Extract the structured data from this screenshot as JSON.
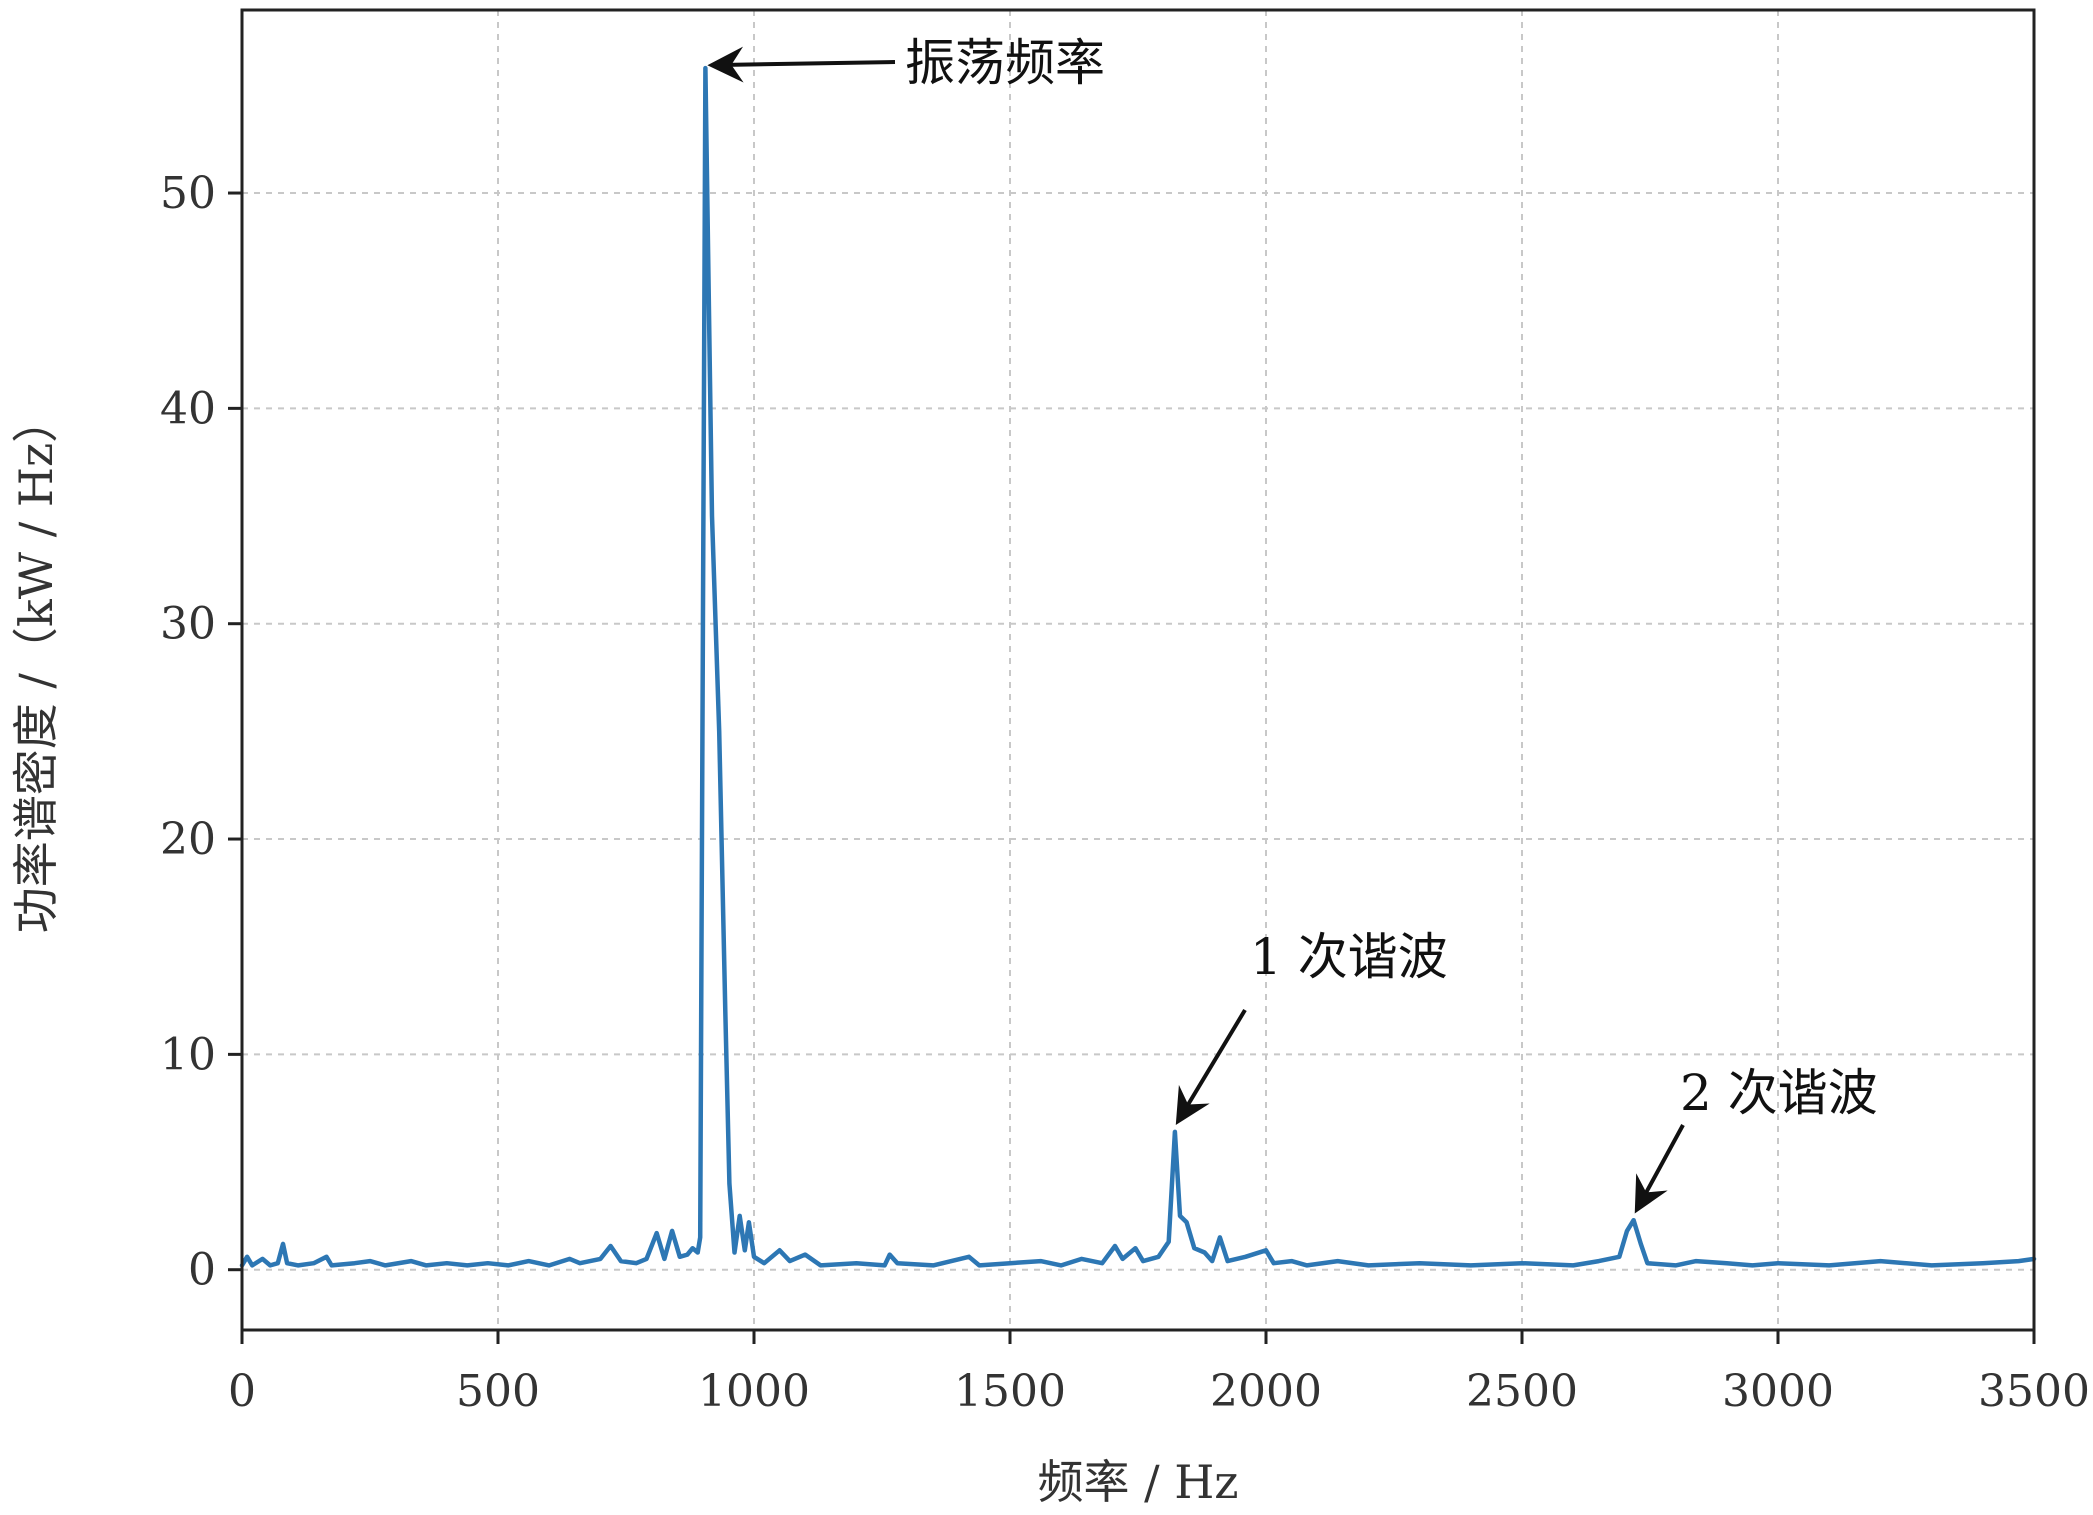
{
  "chart_data": {
    "type": "line",
    "title": "",
    "xlabel": "频率 / Hz",
    "ylabel": "功率谱密度 /（kW / Hz）",
    "xlim": [
      0,
      3500
    ],
    "ylim": [
      -2.8,
      58.5
    ],
    "xticks": [
      0,
      500,
      1000,
      1500,
      2000,
      2500,
      3000,
      3500
    ],
    "yticks": [
      0,
      10,
      20,
      30,
      40,
      50
    ],
    "grid": true,
    "legend": "none",
    "series": [
      {
        "color": "#2d77b4",
        "points": [
          [
            0,
            0.2
          ],
          [
            10,
            0.6
          ],
          [
            20,
            0.2
          ],
          [
            40,
            0.5
          ],
          [
            55,
            0.2
          ],
          [
            70,
            0.3
          ],
          [
            80,
            1.2
          ],
          [
            88,
            0.3
          ],
          [
            110,
            0.2
          ],
          [
            140,
            0.3
          ],
          [
            165,
            0.6
          ],
          [
            175,
            0.2
          ],
          [
            220,
            0.3
          ],
          [
            250,
            0.4
          ],
          [
            280,
            0.2
          ],
          [
            330,
            0.4
          ],
          [
            360,
            0.2
          ],
          [
            400,
            0.3
          ],
          [
            440,
            0.2
          ],
          [
            480,
            0.3
          ],
          [
            520,
            0.2
          ],
          [
            560,
            0.4
          ],
          [
            600,
            0.2
          ],
          [
            640,
            0.5
          ],
          [
            660,
            0.3
          ],
          [
            700,
            0.5
          ],
          [
            720,
            1.1
          ],
          [
            740,
            0.4
          ],
          [
            770,
            0.3
          ],
          [
            790,
            0.5
          ],
          [
            810,
            1.7
          ],
          [
            825,
            0.5
          ],
          [
            840,
            1.8
          ],
          [
            855,
            0.6
          ],
          [
            870,
            0.7
          ],
          [
            880,
            1.0
          ],
          [
            890,
            0.8
          ],
          [
            895,
            1.5
          ],
          [
            905,
            55.8
          ],
          [
            918,
            35.0
          ],
          [
            932,
            25.0
          ],
          [
            944,
            12.0
          ],
          [
            952,
            4.0
          ],
          [
            962,
            0.8
          ],
          [
            972,
            2.5
          ],
          [
            982,
            0.9
          ],
          [
            990,
            2.2
          ],
          [
            1000,
            0.6
          ],
          [
            1020,
            0.3
          ],
          [
            1050,
            0.9
          ],
          [
            1070,
            0.4
          ],
          [
            1100,
            0.7
          ],
          [
            1130,
            0.2
          ],
          [
            1200,
            0.3
          ],
          [
            1255,
            0.2
          ],
          [
            1265,
            0.7
          ],
          [
            1280,
            0.3
          ],
          [
            1350,
            0.2
          ],
          [
            1420,
            0.6
          ],
          [
            1440,
            0.2
          ],
          [
            1500,
            0.3
          ],
          [
            1560,
            0.4
          ],
          [
            1600,
            0.2
          ],
          [
            1640,
            0.5
          ],
          [
            1680,
            0.3
          ],
          [
            1705,
            1.1
          ],
          [
            1720,
            0.5
          ],
          [
            1745,
            1.0
          ],
          [
            1760,
            0.4
          ],
          [
            1790,
            0.6
          ],
          [
            1810,
            1.3
          ],
          [
            1822,
            6.4
          ],
          [
            1832,
            2.5
          ],
          [
            1845,
            2.2
          ],
          [
            1860,
            1.0
          ],
          [
            1880,
            0.8
          ],
          [
            1895,
            0.4
          ],
          [
            1910,
            1.5
          ],
          [
            1925,
            0.4
          ],
          [
            1960,
            0.6
          ],
          [
            2000,
            0.9
          ],
          [
            2015,
            0.3
          ],
          [
            2050,
            0.4
          ],
          [
            2080,
            0.2
          ],
          [
            2140,
            0.4
          ],
          [
            2200,
            0.2
          ],
          [
            2300,
            0.3
          ],
          [
            2400,
            0.2
          ],
          [
            2500,
            0.3
          ],
          [
            2600,
            0.2
          ],
          [
            2650,
            0.4
          ],
          [
            2690,
            0.6
          ],
          [
            2705,
            1.8
          ],
          [
            2718,
            2.3
          ],
          [
            2732,
            1.2
          ],
          [
            2745,
            0.3
          ],
          [
            2800,
            0.2
          ],
          [
            2840,
            0.4
          ],
          [
            2900,
            0.3
          ],
          [
            2950,
            0.2
          ],
          [
            3000,
            0.3
          ],
          [
            3100,
            0.2
          ],
          [
            3200,
            0.4
          ],
          [
            3300,
            0.2
          ],
          [
            3400,
            0.3
          ],
          [
            3470,
            0.4
          ],
          [
            3500,
            0.5
          ]
        ]
      }
    ],
    "annotations": [
      {
        "text": "振荡频率",
        "x": 905,
        "y": 55.8
      },
      {
        "text": "1 次谐波",
        "x": 1822,
        "y": 6.4
      },
      {
        "text": "2 次谐波",
        "x": 2718,
        "y": 2.3
      }
    ]
  }
}
